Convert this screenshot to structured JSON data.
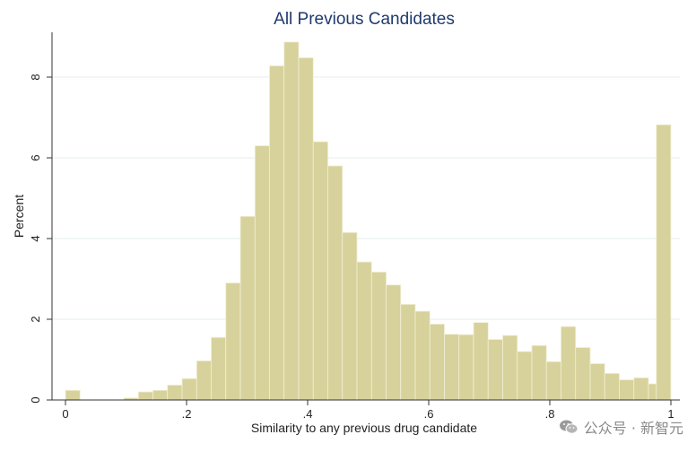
{
  "chart_data": {
    "type": "bar",
    "title": "All Previous Candidates",
    "xlabel": "Similarity to any previous drug candidate",
    "ylabel": "Percent",
    "xlim": [
      0,
      1
    ],
    "ylim": [
      0,
      9
    ],
    "x_ticks": [
      {
        "value": 0,
        "label": "0"
      },
      {
        "value": 0.2,
        "label": ".2"
      },
      {
        "value": 0.4,
        "label": ".4"
      },
      {
        "value": 0.6,
        "label": ".6"
      },
      {
        "value": 0.8,
        "label": ".8"
      },
      {
        "value": 1,
        "label": "1"
      }
    ],
    "y_ticks": [
      {
        "value": 0,
        "label": "0"
      },
      {
        "value": 2,
        "label": "2"
      },
      {
        "value": 4,
        "label": "4"
      },
      {
        "value": 6,
        "label": "6"
      },
      {
        "value": 8,
        "label": "8"
      }
    ],
    "bin_width": 0.0241,
    "bins": [
      {
        "x": 0.0,
        "value": 0.24
      },
      {
        "x": 0.0963,
        "value": 0.05
      },
      {
        "x": 0.1204,
        "value": 0.2
      },
      {
        "x": 0.1444,
        "value": 0.24
      },
      {
        "x": 0.1685,
        "value": 0.37
      },
      {
        "x": 0.1926,
        "value": 0.53
      },
      {
        "x": 0.2167,
        "value": 0.97
      },
      {
        "x": 0.2407,
        "value": 1.55
      },
      {
        "x": 0.2648,
        "value": 2.9
      },
      {
        "x": 0.2889,
        "value": 4.55
      },
      {
        "x": 0.313,
        "value": 6.3
      },
      {
        "x": 0.337,
        "value": 8.28
      },
      {
        "x": 0.3611,
        "value": 8.87
      },
      {
        "x": 0.3852,
        "value": 8.48
      },
      {
        "x": 0.4093,
        "value": 6.4
      },
      {
        "x": 0.4333,
        "value": 5.8
      },
      {
        "x": 0.4574,
        "value": 4.15
      },
      {
        "x": 0.4815,
        "value": 3.42
      },
      {
        "x": 0.5056,
        "value": 3.17
      },
      {
        "x": 0.5296,
        "value": 2.85
      },
      {
        "x": 0.5537,
        "value": 2.37
      },
      {
        "x": 0.5778,
        "value": 2.2
      },
      {
        "x": 0.6019,
        "value": 1.88
      },
      {
        "x": 0.6259,
        "value": 1.63
      },
      {
        "x": 0.65,
        "value": 1.62
      },
      {
        "x": 0.6741,
        "value": 1.92
      },
      {
        "x": 0.6981,
        "value": 1.5
      },
      {
        "x": 0.7222,
        "value": 1.6
      },
      {
        "x": 0.7463,
        "value": 1.2
      },
      {
        "x": 0.7704,
        "value": 1.35
      },
      {
        "x": 0.7944,
        "value": 0.95
      },
      {
        "x": 0.8185,
        "value": 1.82
      },
      {
        "x": 0.8426,
        "value": 1.3
      },
      {
        "x": 0.8667,
        "value": 0.9
      },
      {
        "x": 0.8907,
        "value": 0.66
      },
      {
        "x": 0.9148,
        "value": 0.5
      },
      {
        "x": 0.9389,
        "value": 0.55
      },
      {
        "x": 0.963,
        "value": 0.4
      },
      {
        "x": 0.9759,
        "value": 6.82
      }
    ],
    "bar_color": "#d7d29b",
    "bar_edge_color": "#f2efd8",
    "grid": true,
    "grid_color": "#e6ecef"
  },
  "watermark": {
    "icon": "wechat-icon",
    "text": "公众号 · 新智元"
  }
}
